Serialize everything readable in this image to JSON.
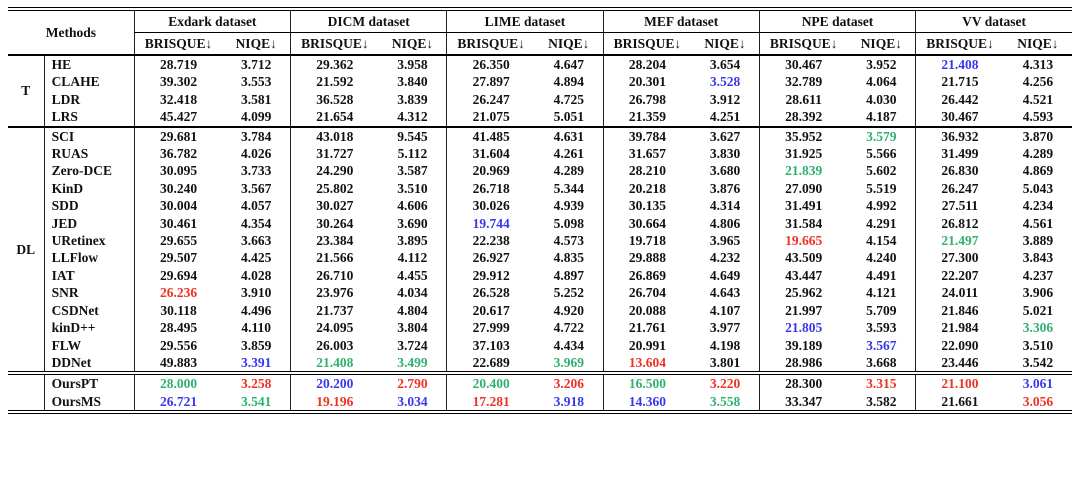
{
  "colors": {
    "red": "#ee3123",
    "green": "#2fb070",
    "blue": "#3737ee",
    "text": "#111111"
  },
  "table": {
    "methods_header": "Methods",
    "metrics": [
      "BRISQUE↓",
      "NIQE↓"
    ],
    "datasets": [
      {
        "label": "Exdark dataset"
      },
      {
        "label": "DICM dataset"
      },
      {
        "label": "LIME dataset"
      },
      {
        "label": "MEF dataset"
      },
      {
        "label": "NPE dataset"
      },
      {
        "label": "VV dataset"
      }
    ],
    "groups": [
      {
        "label": "T",
        "rows": [
          {
            "method": "HE",
            "cells": [
              "28.719",
              "3.712",
              "29.362",
              "3.958",
              "26.350",
              "4.647",
              "28.204",
              "3.654",
              "30.467",
              "3.952",
              "21.408",
              "4.313"
            ],
            "hl": {
              "10": "blue"
            }
          },
          {
            "method": "CLAHE",
            "cells": [
              "39.302",
              "3.553",
              "21.592",
              "3.840",
              "27.897",
              "4.894",
              "20.301",
              "3.528",
              "32.789",
              "4.064",
              "21.715",
              "4.256"
            ],
            "hl": {
              "7": "blue"
            }
          },
          {
            "method": "LDR",
            "cells": [
              "32.418",
              "3.581",
              "36.528",
              "3.839",
              "26.247",
              "4.725",
              "26.798",
              "3.912",
              "28.611",
              "4.030",
              "26.442",
              "4.521"
            ],
            "hl": {}
          },
          {
            "method": "LRS",
            "cells": [
              "45.427",
              "4.099",
              "21.654",
              "4.312",
              "21.075",
              "5.051",
              "21.359",
              "4.251",
              "28.392",
              "4.187",
              "30.467",
              "4.593"
            ],
            "hl": {}
          }
        ]
      },
      {
        "label": "DL",
        "rows": [
          {
            "method": "SCI",
            "cells": [
              "29.681",
              "3.784",
              "43.018",
              "9.545",
              "41.485",
              "4.631",
              "39.784",
              "3.627",
              "35.952",
              "3.579",
              "36.932",
              "3.870"
            ],
            "hl": {
              "9": "green"
            }
          },
          {
            "method": "RUAS",
            "cells": [
              "36.782",
              "4.026",
              "31.727",
              "5.112",
              "31.604",
              "4.261",
              "31.657",
              "3.830",
              "31.925",
              "5.566",
              "31.499",
              "4.289"
            ],
            "hl": {}
          },
          {
            "method": "Zero-DCE",
            "cells": [
              "30.095",
              "3.733",
              "24.290",
              "3.587",
              "20.969",
              "4.289",
              "28.210",
              "3.680",
              "21.839",
              "5.602",
              "26.830",
              "4.869"
            ],
            "hl": {
              "8": "green"
            }
          },
          {
            "method": "KinD",
            "cells": [
              "30.240",
              "3.567",
              "25.802",
              "3.510",
              "26.718",
              "5.344",
              "20.218",
              "3.876",
              "27.090",
              "5.519",
              "26.247",
              "5.043"
            ],
            "hl": {}
          },
          {
            "method": "SDD",
            "cells": [
              "30.004",
              "4.057",
              "30.027",
              "4.606",
              "30.026",
              "4.939",
              "30.135",
              "4.314",
              "31.491",
              "4.992",
              "27.511",
              "4.234"
            ],
            "hl": {}
          },
          {
            "method": "JED",
            "cells": [
              "30.461",
              "4.354",
              "30.264",
              "3.690",
              "19.744",
              "5.098",
              "30.664",
              "4.806",
              "31.584",
              "4.291",
              "26.812",
              "4.561"
            ],
            "hl": {
              "4": "blue"
            }
          },
          {
            "method": "URetinex",
            "cells": [
              "29.655",
              "3.663",
              "23.384",
              "3.895",
              "22.238",
              "4.573",
              "19.718",
              "3.965",
              "19.665",
              "4.154",
              "21.497",
              "3.889"
            ],
            "hl": {
              "8": "red",
              "10": "green"
            }
          },
          {
            "method": "LLFlow",
            "cells": [
              "29.507",
              "4.425",
              "21.566",
              "4.112",
              "26.927",
              "4.835",
              "29.888",
              "4.232",
              "43.509",
              "4.240",
              "27.300",
              "3.843"
            ],
            "hl": {}
          },
          {
            "method": "IAT",
            "cells": [
              "29.694",
              "4.028",
              "26.710",
              "4.455",
              "29.912",
              "4.897",
              "26.869",
              "4.649",
              "43.447",
              "4.491",
              "22.207",
              "4.237"
            ],
            "hl": {}
          },
          {
            "method": "SNR",
            "cells": [
              "26.236",
              "3.910",
              "23.976",
              "4.034",
              "26.528",
              "5.252",
              "26.704",
              "4.643",
              "25.962",
              "4.121",
              "24.011",
              "3.906"
            ],
            "hl": {
              "0": "red"
            }
          },
          {
            "method": "CSDNet",
            "cells": [
              "30.118",
              "4.496",
              "21.737",
              "4.804",
              "20.617",
              "4.920",
              "20.088",
              "4.107",
              "21.997",
              "5.709",
              "21.846",
              "5.021"
            ],
            "hl": {}
          },
          {
            "method": "kinD++",
            "cells": [
              "28.495",
              "4.110",
              "24.095",
              "3.804",
              "27.999",
              "4.722",
              "21.761",
              "3.977",
              "21.805",
              "3.593",
              "21.984",
              "3.306"
            ],
            "hl": {
              "8": "blue",
              "11": "green"
            }
          },
          {
            "method": "FLW",
            "cells": [
              "29.556",
              "3.859",
              "26.003",
              "3.724",
              "37.103",
              "4.434",
              "20.991",
              "4.198",
              "39.189",
              "3.567",
              "22.090",
              "3.510"
            ],
            "hl": {
              "9": "blue"
            }
          },
          {
            "method": "DDNet",
            "cells": [
              "49.883",
              "3.391",
              "21.408",
              "3.499",
              "22.689",
              "3.969",
              "13.604",
              "3.801",
              "28.986",
              "3.668",
              "23.446",
              "3.542"
            ],
            "hl": {
              "1": "blue",
              "2": "green",
              "3": "green",
              "5": "green",
              "6": "red"
            }
          }
        ]
      },
      {
        "label": "",
        "rows": [
          {
            "method": "OursPT",
            "cells": [
              "28.000",
              "3.258",
              "20.200",
              "2.790",
              "20.400",
              "3.206",
              "16.500",
              "3.220",
              "28.300",
              "3.315",
              "21.100",
              "3.061"
            ],
            "hl": {
              "0": "green",
              "1": "red",
              "2": "blue",
              "3": "red",
              "4": "green",
              "5": "red",
              "6": "green",
              "7": "red",
              "9": "red",
              "10": "red",
              "11": "blue"
            }
          },
          {
            "method": "OursMS",
            "cells": [
              "26.721",
              "3.541",
              "19.196",
              "3.034",
              "17.281",
              "3.918",
              "14.360",
              "3.558",
              "33.347",
              "3.582",
              "21.661",
              "3.056"
            ],
            "hl": {
              "0": "blue",
              "1": "green",
              "2": "red",
              "3": "blue",
              "4": "red",
              "5": "blue",
              "6": "blue",
              "7": "green",
              "11": "red"
            }
          }
        ]
      }
    ]
  }
}
